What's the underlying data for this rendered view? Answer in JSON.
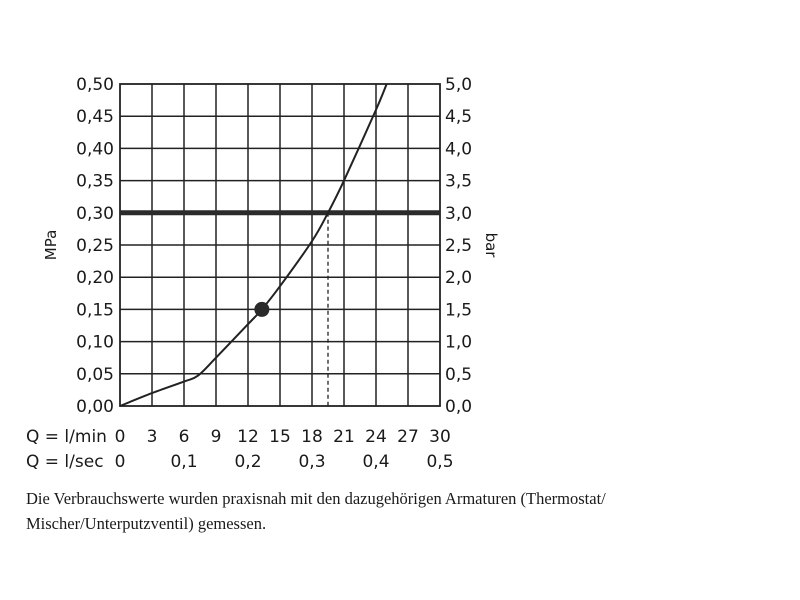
{
  "chart_data": {
    "type": "line",
    "left_axis": {
      "label": "MPa",
      "ticks": [
        "0,00",
        "0,05",
        "0,10",
        "0,15",
        "0,20",
        "0,25",
        "0,30",
        "0,35",
        "0,40",
        "0,45",
        "0,50"
      ],
      "range": [
        0,
        0.5
      ]
    },
    "right_axis": {
      "label": "bar",
      "ticks": [
        "0,0",
        "0,5",
        "1,0",
        "1,5",
        "2,0",
        "2,5",
        "3,0",
        "3,5",
        "4,0",
        "4,5",
        "5,0"
      ],
      "range": [
        0,
        5
      ]
    },
    "x_axis_lmin": {
      "label": "Q = l/min",
      "ticks": [
        "0",
        "3",
        "6",
        "9",
        "12",
        "15",
        "18",
        "21",
        "24",
        "27",
        "30"
      ],
      "range": [
        0,
        30
      ]
    },
    "x_axis_lsec": {
      "label": "Q = l/sec",
      "ticks": [
        "0",
        "0,1",
        "0,2",
        "0,3",
        "0,4",
        "0,5"
      ],
      "range": [
        0,
        0.5
      ]
    },
    "grid": true,
    "series": [
      {
        "x": [
          0,
          3,
          6,
          7.3,
          9,
          12,
          13.3,
          15,
          18,
          19.5,
          21,
          24,
          25
        ],
        "y": [
          0,
          0.02,
          0.038,
          0.047,
          0.075,
          0.127,
          0.15,
          0.186,
          0.256,
          0.3,
          0.35,
          0.46,
          0.5
        ]
      }
    ],
    "reference_line": {
      "y": 0.3
    },
    "marker_point": {
      "x": 13.3,
      "y": 0.15
    },
    "dashed_drop": {
      "x": 19.5,
      "y": 0.3
    }
  },
  "caption": {
    "line1": "Die Verbrauchswerte wurden praxisnah mit den dazugehörigen Armaturen (Thermostat/",
    "line2": "Mischer/Unterputzventil) gemessen."
  }
}
